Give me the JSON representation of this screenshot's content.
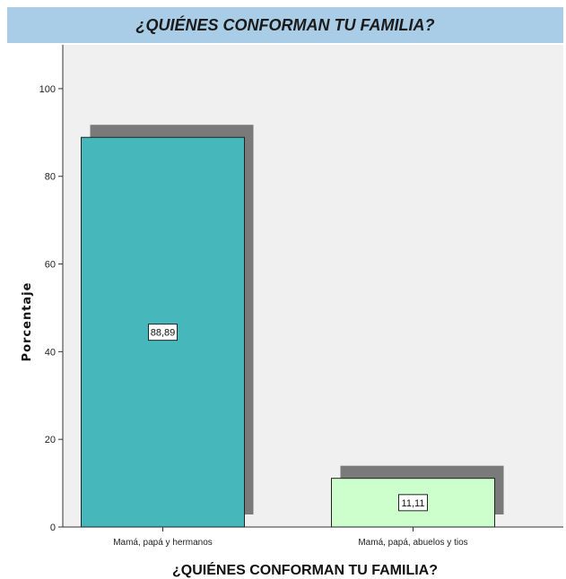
{
  "chart_data": {
    "type": "bar",
    "title": "¿QUIÉNES CONFORMAN TU FAMILIA?",
    "xlabel": "¿QUIÉNES CONFORMAN TU FAMILIA?",
    "ylabel": "Porcentaje",
    "categories": [
      "Mamá, papá y hermanos",
      "Mamá, papá, abuelos y tios"
    ],
    "values": [
      88.89,
      11.11
    ],
    "data_labels": [
      "88,89",
      "11,11"
    ],
    "yticks": [
      "0",
      "20",
      "40",
      "60",
      "80",
      "100"
    ],
    "ylim": [
      0,
      110
    ],
    "bar_colors": [
      "#46b8bc",
      "#ccffcc"
    ],
    "shadow_color": "#7a7a7a",
    "plot_background": "#f0f0f0",
    "grid": false,
    "legend": "none"
  }
}
